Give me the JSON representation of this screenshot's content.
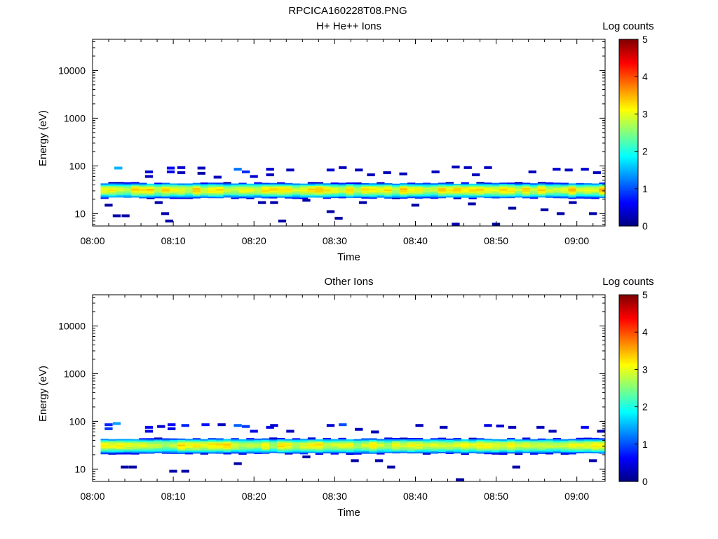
{
  "figure_title": "RPCICA160228T08.PNG",
  "chart_data": [
    {
      "type": "heatmap",
      "panel_id": "top",
      "title": "H+ He++ Ions",
      "xlabel": "Time",
      "ylabel": "Energy (eV)",
      "x_ticks": [
        "08:00",
        "08:10",
        "08:20",
        "08:30",
        "08:40",
        "08:50",
        "09:00"
      ],
      "x_range_minutes": [
        0,
        63.5
      ],
      "y_scale": "log",
      "y_ticks": [
        "10",
        "100",
        "1000",
        "10000"
      ],
      "y_range": [
        5.5,
        45000
      ],
      "colorbar": {
        "label": "Log counts",
        "ticks": [
          "0",
          "1",
          "2",
          "3",
          "4",
          "5"
        ],
        "range": [
          0,
          5
        ],
        "colormap": "jet"
      },
      "data_start_minute": 1.0,
      "bin_minutes": 0.95,
      "core_band": {
        "energy_low_eV": 21,
        "energy_high_eV": 44,
        "peak_energy_eV": 32,
        "peak_log_counts": 3.2
      },
      "sparse_counts": [
        {
          "t": 2.7,
          "e": 90,
          "v": 1.5
        },
        {
          "t": 2.5,
          "e": 9,
          "v": 0.2
        },
        {
          "t": 3.6,
          "e": 9,
          "v": 0.2
        },
        {
          "t": 1.5,
          "e": 15,
          "v": 0.2
        },
        {
          "t": 6.5,
          "e": 75,
          "v": 0.4
        },
        {
          "t": 6.5,
          "e": 60,
          "v": 0.3
        },
        {
          "t": 7.7,
          "e": 17,
          "v": 0.2
        },
        {
          "t": 9.2,
          "e": 90,
          "v": 0.6
        },
        {
          "t": 9.2,
          "e": 75,
          "v": 0.5
        },
        {
          "t": 10.5,
          "e": 92,
          "v": 0.4
        },
        {
          "t": 10.5,
          "e": 72,
          "v": 0.3
        },
        {
          "t": 8.5,
          "e": 10,
          "v": 0.2
        },
        {
          "t": 9.0,
          "e": 7,
          "v": 0.2
        },
        {
          "t": 13.0,
          "e": 90,
          "v": 0.3
        },
        {
          "t": 13.0,
          "e": 70,
          "v": 0.2
        },
        {
          "t": 15.0,
          "e": 58,
          "v": 0.3
        },
        {
          "t": 17.5,
          "e": 85,
          "v": 1.2
        },
        {
          "t": 18.5,
          "e": 75,
          "v": 0.8
        },
        {
          "t": 19.5,
          "e": 60,
          "v": 0.4
        },
        {
          "t": 21.5,
          "e": 85,
          "v": 0.4
        },
        {
          "t": 21.5,
          "e": 65,
          "v": 0.3
        },
        {
          "t": 24.0,
          "e": 82,
          "v": 0.3
        },
        {
          "t": 22.0,
          "e": 17,
          "v": 0.2
        },
        {
          "t": 20.5,
          "e": 17,
          "v": 0.2
        },
        {
          "t": 23.0,
          "e": 7,
          "v": 0.2
        },
        {
          "t": 26.0,
          "e": 19,
          "v": 0.2
        },
        {
          "t": 29.0,
          "e": 82,
          "v": 0.4
        },
        {
          "t": 30.5,
          "e": 92,
          "v": 0.3
        },
        {
          "t": 32.5,
          "e": 82,
          "v": 0.3
        },
        {
          "t": 34.0,
          "e": 65,
          "v": 0.3
        },
        {
          "t": 29.0,
          "e": 11,
          "v": 0.2
        },
        {
          "t": 30.0,
          "e": 8,
          "v": 0.2
        },
        {
          "t": 33.0,
          "e": 17,
          "v": 0.2
        },
        {
          "t": 36.0,
          "e": 72,
          "v": 0.3
        },
        {
          "t": 38.0,
          "e": 68,
          "v": 0.3
        },
        {
          "t": 42.0,
          "e": 75,
          "v": 0.3
        },
        {
          "t": 44.5,
          "e": 95,
          "v": 0.3
        },
        {
          "t": 46.0,
          "e": 92,
          "v": 0.3
        },
        {
          "t": 47.0,
          "e": 65,
          "v": 0.3
        },
        {
          "t": 48.5,
          "e": 92,
          "v": 0.3
        },
        {
          "t": 39.5,
          "e": 15,
          "v": 0.2
        },
        {
          "t": 46.5,
          "e": 16,
          "v": 0.2
        },
        {
          "t": 44.5,
          "e": 6,
          "v": 0.2
        },
        {
          "t": 49.5,
          "e": 6,
          "v": 0.2
        },
        {
          "t": 51.5,
          "e": 13,
          "v": 0.2
        },
        {
          "t": 54.0,
          "e": 75,
          "v": 0.3
        },
        {
          "t": 55.5,
          "e": 12,
          "v": 0.2
        },
        {
          "t": 57.0,
          "e": 85,
          "v": 0.4
        },
        {
          "t": 58.5,
          "e": 82,
          "v": 0.3
        },
        {
          "t": 57.5,
          "e": 10,
          "v": 0.2
        },
        {
          "t": 60.5,
          "e": 85,
          "v": 0.4
        },
        {
          "t": 62.0,
          "e": 72,
          "v": 0.3
        },
        {
          "t": 59.0,
          "e": 17,
          "v": 0.2
        },
        {
          "t": 61.5,
          "e": 10,
          "v": 0.2
        }
      ]
    },
    {
      "type": "heatmap",
      "panel_id": "bottom",
      "title": "Other Ions",
      "xlabel": "Time",
      "ylabel": "Energy (eV)",
      "x_ticks": [
        "08:00",
        "08:10",
        "08:20",
        "08:30",
        "08:40",
        "08:50",
        "09:00"
      ],
      "x_range_minutes": [
        0,
        63.5
      ],
      "y_scale": "log",
      "y_ticks": [
        "10",
        "100",
        "1000",
        "10000"
      ],
      "y_range": [
        5.5,
        45000
      ],
      "colorbar": {
        "label": "Log counts",
        "ticks": [
          "0",
          "1",
          "2",
          "3",
          "4",
          "5"
        ],
        "range": [
          0,
          5
        ],
        "colormap": "jet"
      },
      "data_start_minute": 1.0,
      "bin_minutes": 0.95,
      "core_band": {
        "energy_low_eV": 21,
        "energy_high_eV": 44,
        "peak_energy_eV": 32,
        "peak_log_counts": 3.1
      },
      "sparse_counts": [
        {
          "t": 1.5,
          "e": 85,
          "v": 0.8
        },
        {
          "t": 1.5,
          "e": 70,
          "v": 0.9
        },
        {
          "t": 2.5,
          "e": 90,
          "v": 1.4
        },
        {
          "t": 3.5,
          "e": 11,
          "v": 0.2
        },
        {
          "t": 4.5,
          "e": 11,
          "v": 0.2
        },
        {
          "t": 6.5,
          "e": 75,
          "v": 0.6
        },
        {
          "t": 6.5,
          "e": 62,
          "v": 0.5
        },
        {
          "t": 8.0,
          "e": 78,
          "v": 0.4
        },
        {
          "t": 9.3,
          "e": 85,
          "v": 0.6
        },
        {
          "t": 9.3,
          "e": 70,
          "v": 0.5
        },
        {
          "t": 11.0,
          "e": 82,
          "v": 0.8
        },
        {
          "t": 9.5,
          "e": 9,
          "v": 0.2
        },
        {
          "t": 11.0,
          "e": 9,
          "v": 0.2
        },
        {
          "t": 13.5,
          "e": 85,
          "v": 0.7
        },
        {
          "t": 15.5,
          "e": 85,
          "v": 0.3
        },
        {
          "t": 17.5,
          "e": 82,
          "v": 1.1
        },
        {
          "t": 18.5,
          "e": 78,
          "v": 0.9
        },
        {
          "t": 19.5,
          "e": 62,
          "v": 0.5
        },
        {
          "t": 21.5,
          "e": 75,
          "v": 0.5
        },
        {
          "t": 22.0,
          "e": 82,
          "v": 0.4
        },
        {
          "t": 24.0,
          "e": 62,
          "v": 0.3
        },
        {
          "t": 17.5,
          "e": 13,
          "v": 0.2
        },
        {
          "t": 26.0,
          "e": 18,
          "v": 0.2
        },
        {
          "t": 29.0,
          "e": 82,
          "v": 0.4
        },
        {
          "t": 30.5,
          "e": 85,
          "v": 1.0
        },
        {
          "t": 32.5,
          "e": 68,
          "v": 0.3
        },
        {
          "t": 34.5,
          "e": 60,
          "v": 0.3
        },
        {
          "t": 32.0,
          "e": 15,
          "v": 0.2
        },
        {
          "t": 35.0,
          "e": 15,
          "v": 0.2
        },
        {
          "t": 36.5,
          "e": 11,
          "v": 0.2
        },
        {
          "t": 40.0,
          "e": 82,
          "v": 0.3
        },
        {
          "t": 43.0,
          "e": 75,
          "v": 0.3
        },
        {
          "t": 45.0,
          "e": 6,
          "v": 0.2
        },
        {
          "t": 48.5,
          "e": 82,
          "v": 0.5
        },
        {
          "t": 50.0,
          "e": 80,
          "v": 0.4
        },
        {
          "t": 51.5,
          "e": 75,
          "v": 0.3
        },
        {
          "t": 52.0,
          "e": 11,
          "v": 0.2
        },
        {
          "t": 55.0,
          "e": 75,
          "v": 0.3
        },
        {
          "t": 56.5,
          "e": 62,
          "v": 0.3
        },
        {
          "t": 60.5,
          "e": 75,
          "v": 0.6
        },
        {
          "t": 61.5,
          "e": 15,
          "v": 0.2
        },
        {
          "t": 62.5,
          "e": 62,
          "v": 0.3
        }
      ]
    }
  ]
}
